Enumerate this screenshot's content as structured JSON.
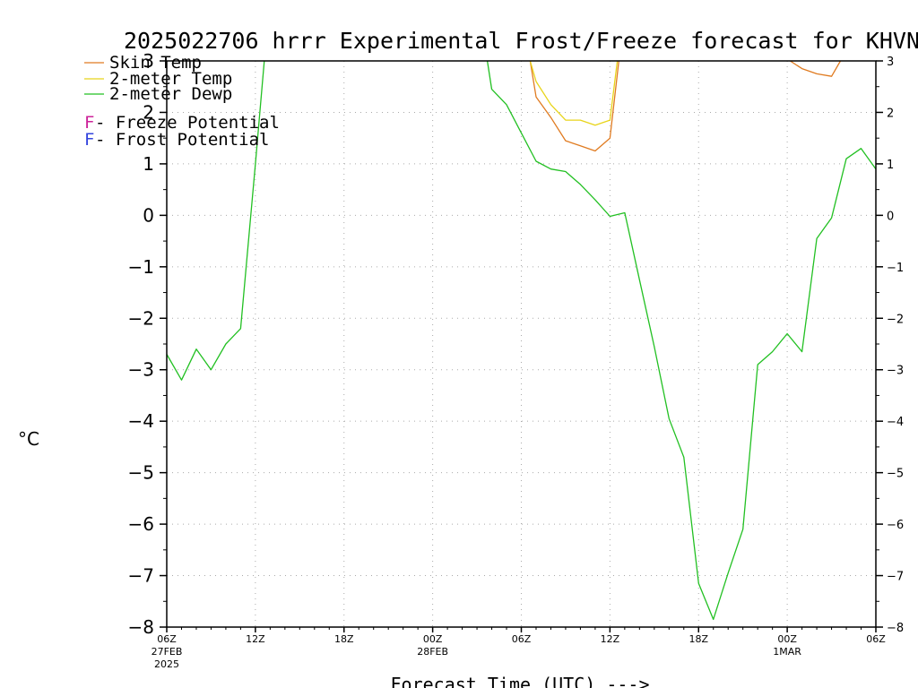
{
  "chart_data": {
    "type": "line",
    "title": "2025022706 hrrr Experimental Frost/Freeze forecast for KHVN",
    "xlabel": "Forecast Time (UTC) --->",
    "ylabel": "°C",
    "ylim": [
      -8,
      3
    ],
    "xlim": [
      0,
      48
    ],
    "grid": true,
    "y_ticks": [
      3,
      2,
      1,
      0,
      -1,
      -2,
      -3,
      -4,
      -5,
      -6,
      -7,
      -8
    ],
    "y_tick_labels": [
      "3",
      "2",
      "1",
      "0",
      "−1",
      "−2",
      "−3",
      "−4",
      "−5",
      "−6",
      "−7",
      "−8"
    ],
    "x_ticks": [
      {
        "x": 0,
        "label": "06Z",
        "sub1": "27FEB",
        "sub2": "2025"
      },
      {
        "x": 6,
        "label": "12Z",
        "sub1": "",
        "sub2": ""
      },
      {
        "x": 12,
        "label": "18Z",
        "sub1": "",
        "sub2": ""
      },
      {
        "x": 18,
        "label": "00Z",
        "sub1": "28FEB",
        "sub2": ""
      },
      {
        "x": 24,
        "label": "06Z",
        "sub1": "",
        "sub2": ""
      },
      {
        "x": 30,
        "label": "12Z",
        "sub1": "",
        "sub2": ""
      },
      {
        "x": 36,
        "label": "18Z",
        "sub1": "",
        "sub2": ""
      },
      {
        "x": 42,
        "label": "00Z",
        "sub1": "1MAR",
        "sub2": ""
      },
      {
        "x": 48,
        "label": "06Z",
        "sub1": "",
        "sub2": ""
      }
    ],
    "legend": [
      {
        "name": "Skin Temp",
        "color": "#e07b20",
        "marker": ""
      },
      {
        "name": "2-meter Temp",
        "color": "#e8d41a",
        "marker": ""
      },
      {
        "name": "2-meter Dewp",
        "color": "#22c022",
        "marker": ""
      },
      {
        "name": " - Freeze Potential",
        "color": "",
        "marker": "F",
        "marker_color": "#cc2299"
      },
      {
        "name": " - Frost Potential",
        "color": "",
        "marker": "F",
        "marker_color": "#3344dd"
      }
    ],
    "legend_position": "top-left",
    "series": [
      {
        "name": "Skin Temp",
        "color": "#e07b20",
        "segments": [
          [
            [
              24.6,
              3.0
            ],
            [
              25,
              2.3
            ],
            [
              26,
              1.9
            ],
            [
              27,
              1.45
            ],
            [
              28,
              1.35
            ],
            [
              29,
              1.25
            ],
            [
              30,
              1.5
            ],
            [
              30.6,
              3.0
            ]
          ],
          [
            [
              42.2,
              3.0
            ],
            [
              43,
              2.85
            ],
            [
              44,
              2.75
            ],
            [
              45,
              2.7
            ],
            [
              45.6,
              3.0
            ]
          ]
        ]
      },
      {
        "name": "2-meter Temp",
        "color": "#e8d41a",
        "segments": [
          [
            [
              24.6,
              3.0
            ],
            [
              25,
              2.6
            ],
            [
              26,
              2.15
            ],
            [
              27,
              1.85
            ],
            [
              28,
              1.85
            ],
            [
              29,
              1.75
            ],
            [
              30,
              1.85
            ],
            [
              30.5,
              3.0
            ]
          ]
        ]
      },
      {
        "name": "2-meter Dewp",
        "color": "#22c022",
        "segments": [
          [
            [
              0,
              -2.7
            ],
            [
              1,
              -3.2
            ],
            [
              2,
              -2.6
            ],
            [
              3,
              -3.0
            ],
            [
              4,
              -2.5
            ],
            [
              5,
              -2.2
            ],
            [
              6,
              1.0
            ],
            [
              6.6,
              3.0
            ]
          ],
          [
            [
              21.7,
              3.0
            ],
            [
              22,
              2.45
            ],
            [
              23,
              2.15
            ],
            [
              24,
              1.6
            ],
            [
              25,
              1.05
            ],
            [
              26,
              0.9
            ],
            [
              27,
              0.85
            ],
            [
              28,
              0.6
            ],
            [
              29,
              0.3
            ],
            [
              30,
              -0.02
            ],
            [
              31,
              0.05
            ],
            [
              32,
              -1.25
            ],
            [
              33,
              -2.55
            ],
            [
              34,
              -3.95
            ],
            [
              35,
              -4.7
            ],
            [
              36,
              -7.15
            ],
            [
              37,
              -7.85
            ],
            [
              38,
              -6.95
            ],
            [
              39,
              -6.1
            ],
            [
              40,
              -2.9
            ],
            [
              41,
              -2.65
            ],
            [
              42,
              -2.3
            ],
            [
              43,
              -2.65
            ],
            [
              44,
              -0.45
            ],
            [
              45,
              -0.05
            ],
            [
              46,
              1.1
            ],
            [
              47,
              1.3
            ],
            [
              48,
              0.9
            ]
          ]
        ]
      }
    ]
  }
}
